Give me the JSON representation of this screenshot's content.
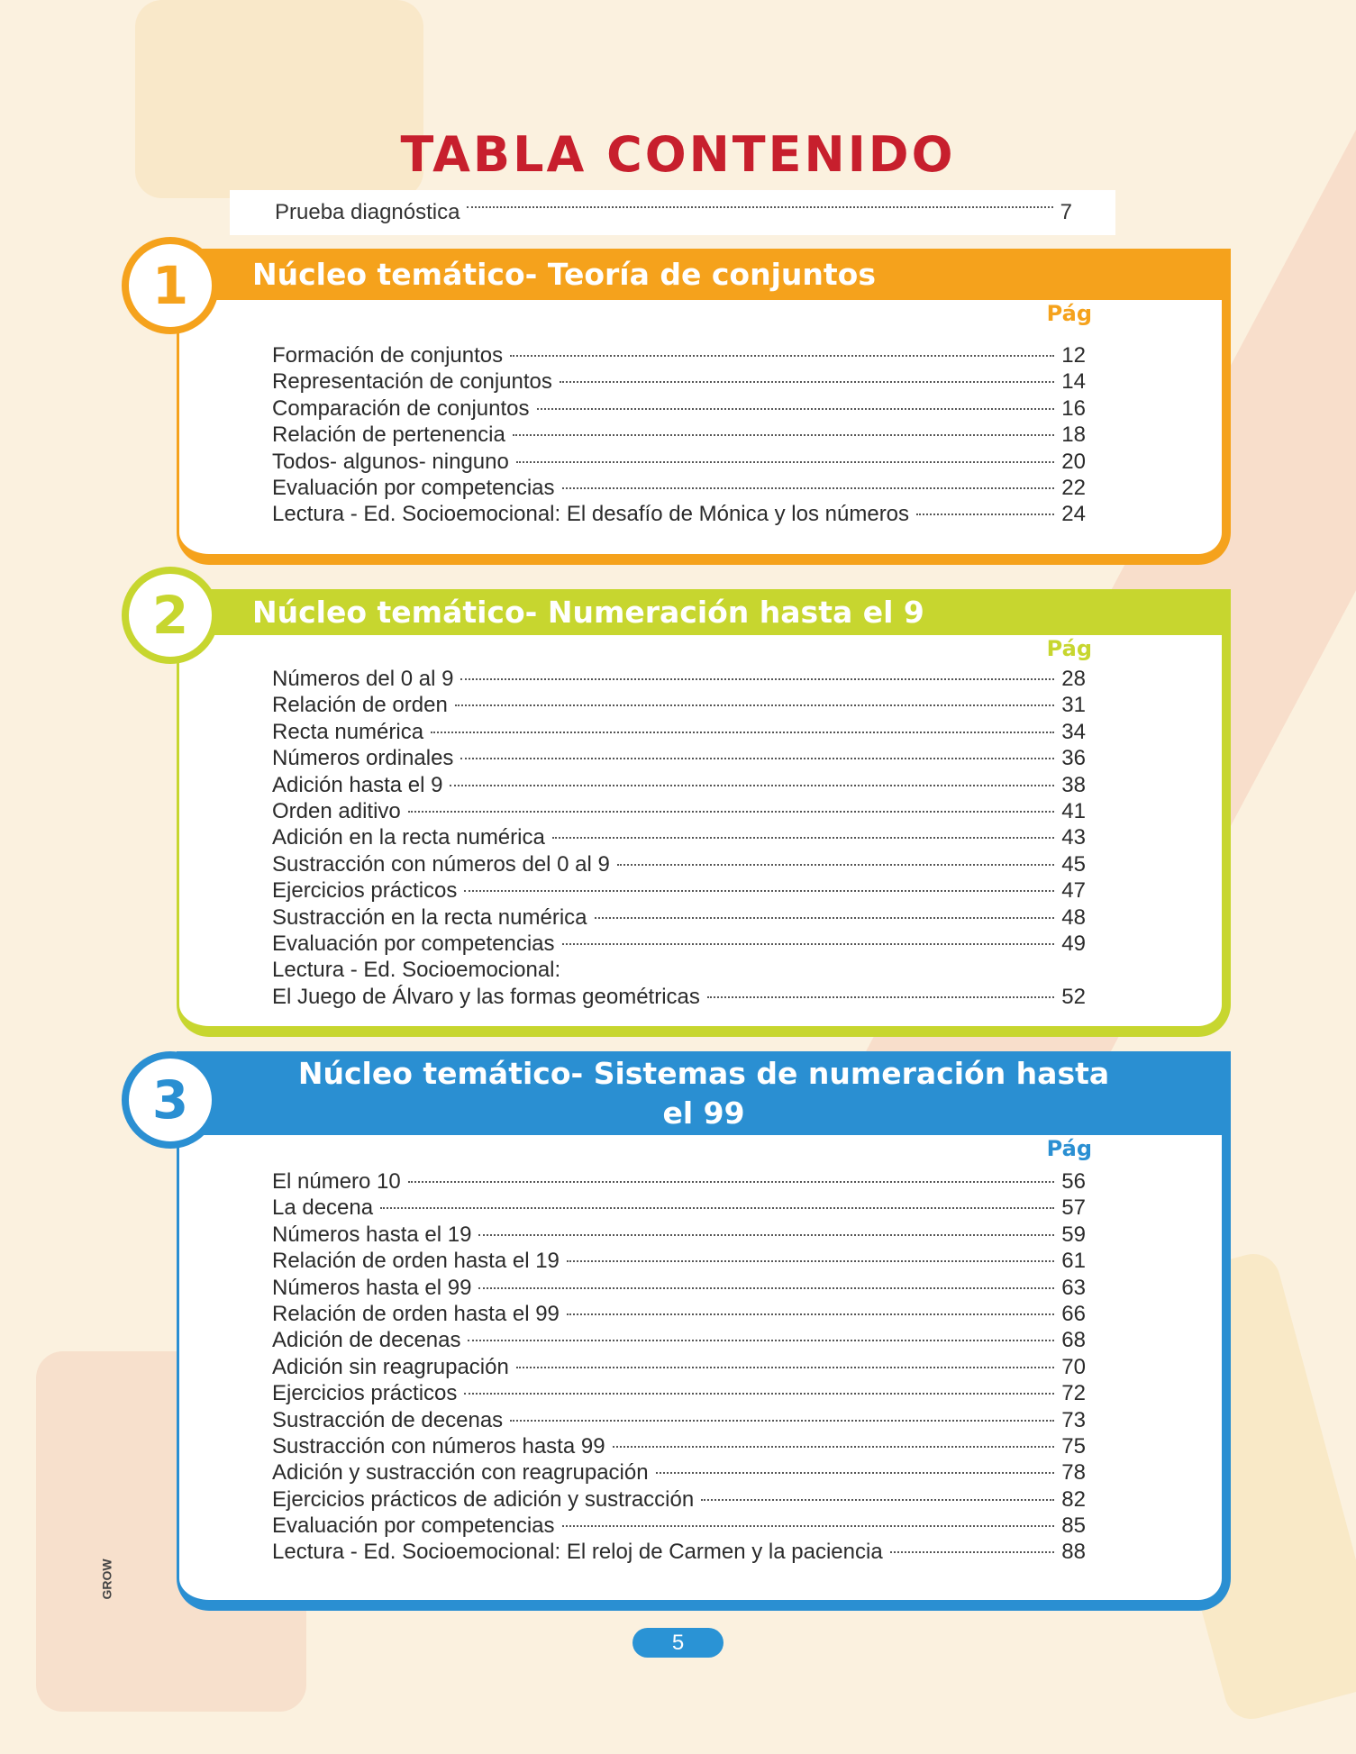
{
  "title": "TABLA CONTENIDO",
  "intro": {
    "label": "Prueba diagnóstica",
    "page": 7
  },
  "sections": [
    {
      "number": "1",
      "title": "Núcleo temático- Teoría de conjuntos",
      "page_header": "Pág",
      "entries": [
        {
          "label": "Formación de conjuntos",
          "page": 12
        },
        {
          "label": "Representación de conjuntos",
          "page": 14
        },
        {
          "label": "Comparación de conjuntos",
          "page": 16
        },
        {
          "label": "Relación de pertenencia",
          "page": 18
        },
        {
          "label": "Todos- algunos- ninguno",
          "page": 20
        },
        {
          "label": "Evaluación por competencias",
          "page": 22
        },
        {
          "label": "Lectura - Ed. Socioemocional: El desafío de Mónica y los números",
          "page": 24
        }
      ]
    },
    {
      "number": "2",
      "title": "Núcleo temático- Numeración hasta el 9",
      "page_header": "Pág",
      "entries": [
        {
          "label": "Números del 0 al 9",
          "page": 28
        },
        {
          "label": "Relación de orden",
          "page": 31
        },
        {
          "label": "Recta numérica",
          "page": 34
        },
        {
          "label": "Números ordinales",
          "page": 36
        },
        {
          "label": "Adición hasta el 9",
          "page": 38
        },
        {
          "label": "Orden aditivo",
          "page": 41
        },
        {
          "label": "Adición en la recta numérica",
          "page": 43
        },
        {
          "label": "Sustracción con números del 0 al 9",
          "page": 45
        },
        {
          "label": "Ejercicios prácticos",
          "page": 47
        },
        {
          "label": "Sustracción en la recta numérica",
          "page": 48
        },
        {
          "label": "Evaluación por competencias",
          "page": 49
        },
        {
          "label": "Lectura - Ed. Socioemocional:"
        },
        {
          "label": "El Juego de Álvaro y las formas geométricas",
          "page": 52
        }
      ]
    },
    {
      "number": "3",
      "title": "Núcleo temático- Sistemas de numeración hasta el 99",
      "page_header": "Pág",
      "entries": [
        {
          "label": "El número 10",
          "page": 56
        },
        {
          "label": "La decena",
          "page": 57
        },
        {
          "label": "Números hasta el 19",
          "page": 59
        },
        {
          "label": "Relación de orden hasta el 19",
          "page": 61
        },
        {
          "label": "Números hasta el 99",
          "page": 63
        },
        {
          "label": "Relación de orden hasta el 99",
          "page": 66
        },
        {
          "label": "Adición de decenas",
          "page": 68
        },
        {
          "label": "Adición sin reagrupación",
          "page": 70
        },
        {
          "label": "Ejercicios prácticos",
          "page": 72
        },
        {
          "label": "Sustracción de decenas",
          "page": 73
        },
        {
          "label": "Sustracción con números hasta 99",
          "page": 75
        },
        {
          "label": "Adición y sustracción con reagrupación",
          "page": 78
        },
        {
          "label": "Ejercicios prácticos de adición y sustracción",
          "page": 82
        },
        {
          "label": "Evaluación por competencias",
          "page": 85
        },
        {
          "label": "Lectura - Ed. Socioemocional: El reloj de Carmen y la paciencia",
          "page": 88
        }
      ]
    }
  ],
  "footer": {
    "brand": "GROW",
    "page_number": 5
  }
}
